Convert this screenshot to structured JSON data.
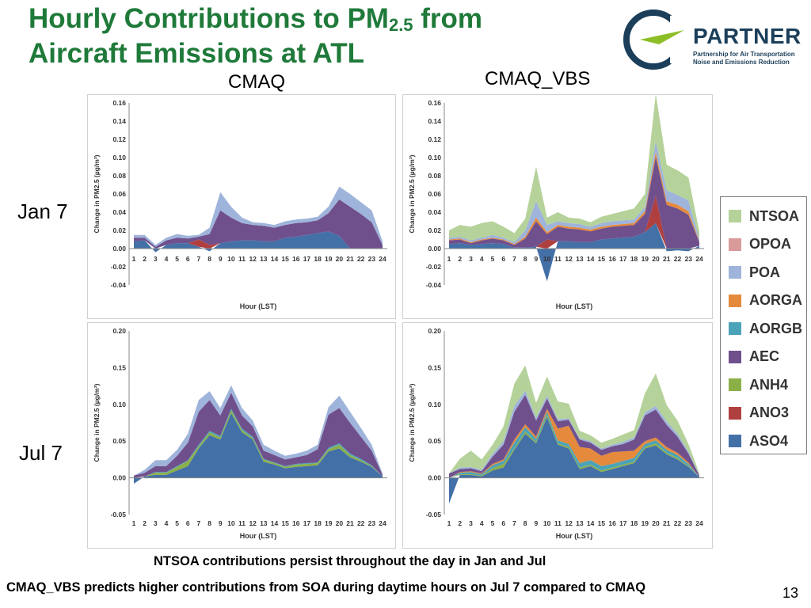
{
  "slide": {
    "title_line1_pre": "Hourly Contributions to PM",
    "title_line1_sub": "2.5",
    "title_line1_post": " from",
    "title_line2": "Aircraft Emissions at ATL",
    "col_left": "CMAQ",
    "col_right": "CMAQ_VBS",
    "row_top": "Jan 7",
    "row_bottom": "Jul 7",
    "footnote1": "NTSOA contributions persist throughout the day in Jan and Jul",
    "footnote2": "CMAQ_VBS predicts higher contributions from SOA during daytime hours on Jul 7 compared to CMAQ",
    "page_number": "13"
  },
  "logo": {
    "word": "PARTNER",
    "sub_line1": "Partnership for Air Transportation",
    "sub_line2": "Noise and Emissions Reduction",
    "ring_color": "#1b3f5a",
    "arrow_color": "#8cbf26"
  },
  "legend": [
    {
      "name": "NTSOA",
      "color": "#b5d29a"
    },
    {
      "name": "OPOA",
      "color": "#d99a9a"
    },
    {
      "name": "POA",
      "color": "#9fb4da"
    },
    {
      "name": "AORGA",
      "color": "#e58a3c"
    },
    {
      "name": "AORGB",
      "color": "#4aa3b9"
    },
    {
      "name": "AEC",
      "color": "#70508c"
    },
    {
      "name": "ANH4",
      "color": "#8cb048"
    },
    {
      "name": "ANO3",
      "color": "#b04040"
    },
    {
      "name": "ASO4",
      "color": "#4470a8"
    }
  ],
  "chart_data": [
    {
      "type": "area",
      "panel": "CMAQ Jan 7",
      "xlabel": "Hour (LST)",
      "ylabel": "Change in PM2.5 (µg/m³)",
      "ylim": [
        -0.04,
        0.16
      ],
      "yticks": [
        "-0.04",
        "-0.02",
        "0.00",
        "0.02",
        "0.04",
        "0.06",
        "0.08",
        "0.10",
        "0.12",
        "0.14",
        "0.16"
      ],
      "x": [
        1,
        2,
        3,
        4,
        5,
        6,
        7,
        8,
        9,
        10,
        11,
        12,
        13,
        14,
        15,
        16,
        17,
        18,
        19,
        20,
        21,
        22,
        23,
        24
      ],
      "series": [
        {
          "name": "ASO4",
          "values": [
            0.008,
            0.009,
            -0.004,
            0.004,
            0.006,
            0.006,
            0.002,
            -0.003,
            0.006,
            0.008,
            0.009,
            0.009,
            0.008,
            0.008,
            0.012,
            0.013,
            0.015,
            0.017,
            0.019,
            0.014,
            0.0,
            0.0,
            0.0,
            0.0
          ]
        },
        {
          "name": "ANO3",
          "values": [
            0,
            0,
            0,
            0,
            0,
            0,
            0.008,
            0.004,
            0,
            0,
            0,
            0,
            0,
            0,
            0,
            0,
            0,
            0,
            0,
            0,
            0,
            0,
            0,
            0
          ]
        },
        {
          "name": "AEC",
          "values": [
            0.004,
            0.003,
            0.002,
            0.005,
            0.006,
            0.005,
            0.003,
            0.012,
            0.036,
            0.026,
            0.019,
            0.017,
            0.017,
            0.015,
            0.014,
            0.015,
            0.014,
            0.014,
            0.02,
            0.04,
            0.046,
            0.038,
            0.029,
            0.004
          ]
        },
        {
          "name": "POA",
          "values": [
            0.003,
            0.003,
            0.002,
            0.003,
            0.004,
            0.003,
            0.002,
            0.007,
            0.02,
            0.012,
            0.006,
            0.003,
            0.003,
            0.003,
            0.004,
            0.004,
            0.004,
            0.004,
            0.007,
            0.014,
            0.014,
            0.013,
            0.013,
            0.004
          ]
        }
      ]
    },
    {
      "type": "area",
      "panel": "CMAQ_VBS Jan 7",
      "xlabel": "Hour (LST)",
      "ylabel": "Change in PM2.5 (µg/m³)",
      "ylim": [
        -0.04,
        0.16
      ],
      "yticks": [
        "-0.04",
        "-0.02",
        "0.00",
        "0.02",
        "0.04",
        "0.06",
        "0.08",
        "0.10",
        "0.12",
        "0.14",
        "0.16"
      ],
      "x": [
        1,
        2,
        3,
        4,
        5,
        6,
        7,
        8,
        9,
        10,
        11,
        12,
        13,
        14,
        15,
        16,
        17,
        18,
        19,
        20,
        21,
        22,
        23,
        24
      ],
      "series": [
        {
          "name": "ASO4",
          "values": [
            0.005,
            0.006,
            0.004,
            0.005,
            0.006,
            0.005,
            0.001,
            0.001,
            0.002,
            -0.036,
            0.008,
            0.008,
            0.007,
            0.007,
            0.01,
            0.011,
            0.012,
            0.013,
            0.018,
            0.028,
            -0.003,
            -0.002,
            -0.003,
            0.003
          ]
        },
        {
          "name": "ANO3",
          "values": [
            0,
            0,
            0,
            0,
            0,
            0,
            0,
            0,
            0,
            0.01,
            0,
            0,
            0,
            0,
            0,
            0,
            0,
            0,
            0,
            0.03,
            0,
            0,
            0,
            0
          ]
        },
        {
          "name": "AEC",
          "values": [
            0.004,
            0.004,
            0.002,
            0.004,
            0.005,
            0.004,
            0.003,
            0.01,
            0.028,
            0.006,
            0.016,
            0.014,
            0.014,
            0.012,
            0.012,
            0.013,
            0.013,
            0.013,
            0.02,
            0.043,
            0.048,
            0.044,
            0.037,
            0.004
          ]
        },
        {
          "name": "AORGA",
          "values": [
            0.001,
            0.001,
            0.001,
            0.001,
            0.001,
            0.001,
            0.001,
            0.002,
            0.004,
            0.002,
            0.002,
            0.002,
            0.002,
            0.002,
            0.002,
            0.002,
            0.002,
            0.002,
            0.003,
            0.005,
            0.004,
            0.004,
            0.004,
            0.001
          ]
        },
        {
          "name": "POA",
          "values": [
            0.002,
            0.002,
            0.002,
            0.002,
            0.003,
            0.002,
            0.002,
            0.007,
            0.018,
            0.008,
            0.004,
            0.004,
            0.004,
            0.003,
            0.004,
            0.004,
            0.004,
            0.004,
            0.005,
            0.012,
            0.012,
            0.011,
            0.012,
            0.003
          ]
        },
        {
          "name": "NTSOA",
          "values": [
            0.008,
            0.013,
            0.015,
            0.016,
            0.015,
            0.012,
            0.01,
            0.013,
            0.038,
            0.008,
            0.01,
            0.006,
            0.006,
            0.005,
            0.007,
            0.008,
            0.01,
            0.012,
            0.014,
            0.052,
            0.028,
            0.027,
            0.025,
            0.008
          ]
        }
      ]
    },
    {
      "type": "area",
      "panel": "CMAQ Jul 7",
      "xlabel": "Hour (LST)",
      "ylabel": "Change in PM2.5 (µg/m³)",
      "ylim": [
        -0.05,
        0.2
      ],
      "yticks": [
        "-0.05",
        "0.00",
        "0.05",
        "0.10",
        "0.15",
        "0.20"
      ],
      "x": [
        1,
        2,
        3,
        4,
        5,
        6,
        7,
        8,
        9,
        10,
        11,
        12,
        13,
        14,
        15,
        16,
        17,
        18,
        19,
        20,
        21,
        22,
        23,
        24
      ],
      "series": [
        {
          "name": "ASO4",
          "values": [
            -0.008,
            0.002,
            0.004,
            0.004,
            0.01,
            0.016,
            0.04,
            0.058,
            0.052,
            0.088,
            0.062,
            0.052,
            0.022,
            0.018,
            0.013,
            0.015,
            0.016,
            0.017,
            0.036,
            0.04,
            0.028,
            0.022,
            0.015,
            0.002
          ]
        },
        {
          "name": "ANH4",
          "values": [
            0.0,
            0.0,
            0.003,
            0.003,
            0.005,
            0.007,
            0.003,
            0.004,
            0.003,
            0.004,
            0.003,
            0.002,
            0.003,
            0.002,
            0.002,
            0.003,
            0.003,
            0.003,
            0.003,
            0.005,
            0.003,
            0.002,
            0.001,
            0.0
          ]
        },
        {
          "name": "AORGB",
          "values": [
            0.0,
            0.0,
            0.001,
            0.001,
            0.001,
            0.001,
            0.002,
            0.002,
            0.002,
            0.002,
            0.002,
            0.002,
            0.001,
            0.001,
            0.001,
            0.001,
            0.001,
            0.001,
            0.002,
            0.002,
            0.002,
            0.002,
            0.001,
            0.0
          ]
        },
        {
          "name": "AEC",
          "values": [
            0.003,
            0.005,
            0.008,
            0.008,
            0.014,
            0.024,
            0.045,
            0.042,
            0.028,
            0.022,
            0.018,
            0.014,
            0.011,
            0.01,
            0.009,
            0.009,
            0.011,
            0.018,
            0.045,
            0.048,
            0.042,
            0.03,
            0.02,
            0.002
          ]
        },
        {
          "name": "POA",
          "values": [
            0.0,
            0.004,
            0.008,
            0.008,
            0.008,
            0.012,
            0.016,
            0.012,
            0.01,
            0.01,
            0.01,
            0.008,
            0.008,
            0.006,
            0.005,
            0.005,
            0.006,
            0.006,
            0.01,
            0.017,
            0.015,
            0.012,
            0.008,
            0.002
          ]
        }
      ]
    },
    {
      "type": "area",
      "panel": "CMAQ_VBS Jul 7",
      "xlabel": "Hour (LST)",
      "ylabel": "Change in PM2.5 (µg/m³)",
      "ylim": [
        -0.05,
        0.2
      ],
      "yticks": [
        "-0.05",
        "0.00",
        "0.05",
        "0.10",
        "0.15",
        "0.20"
      ],
      "x": [
        1,
        2,
        3,
        4,
        5,
        6,
        7,
        8,
        9,
        10,
        11,
        12,
        13,
        14,
        15,
        16,
        17,
        18,
        19,
        20,
        21,
        22,
        23,
        24
      ],
      "series": [
        {
          "name": "ASO4",
          "values": [
            -0.035,
            0.004,
            0.004,
            0.002,
            0.01,
            0.014,
            0.038,
            0.06,
            0.047,
            0.083,
            0.045,
            0.04,
            0.012,
            0.016,
            0.008,
            0.012,
            0.016,
            0.02,
            0.04,
            0.044,
            0.032,
            0.025,
            0.015,
            0.001
          ]
        },
        {
          "name": "ANH4",
          "values": [
            0.0,
            0.001,
            0.001,
            0.001,
            0.003,
            0.005,
            0.002,
            0.003,
            0.002,
            0.003,
            0.002,
            0.002,
            0.002,
            0.002,
            0.002,
            0.002,
            0.002,
            0.002,
            0.002,
            0.003,
            0.002,
            0.002,
            0.001,
            0.0
          ]
        },
        {
          "name": "AORGB",
          "values": [
            0.0,
            0.002,
            0.003,
            0.002,
            0.004,
            0.004,
            0.008,
            0.006,
            0.004,
            0.004,
            0.004,
            0.004,
            0.006,
            0.006,
            0.006,
            0.005,
            0.005,
            0.005,
            0.004,
            0.004,
            0.004,
            0.004,
            0.003,
            0.0
          ]
        },
        {
          "name": "AORGA",
          "values": [
            0.0,
            0.001,
            0.001,
            0.001,
            0.002,
            0.002,
            0.004,
            0.004,
            0.003,
            0.004,
            0.016,
            0.025,
            0.022,
            0.016,
            0.014,
            0.016,
            0.013,
            0.01,
            0.004,
            0.004,
            0.004,
            0.003,
            0.002,
            0.0
          ]
        },
        {
          "name": "AEC",
          "values": [
            0.006,
            0.004,
            0.004,
            0.003,
            0.01,
            0.02,
            0.038,
            0.04,
            0.022,
            0.014,
            0.01,
            0.008,
            0.01,
            0.008,
            0.008,
            0.008,
            0.01,
            0.015,
            0.035,
            0.038,
            0.03,
            0.022,
            0.012,
            0.002
          ]
        },
        {
          "name": "POA",
          "values": [
            0.0,
            0.002,
            0.002,
            0.002,
            0.004,
            0.005,
            0.008,
            0.006,
            0.004,
            0.004,
            0.003,
            0.002,
            0.002,
            0.002,
            0.002,
            0.002,
            0.003,
            0.003,
            0.004,
            0.005,
            0.005,
            0.004,
            0.003,
            0.001
          ]
        },
        {
          "name": "NTSOA",
          "values": [
            0.0,
            0.012,
            0.022,
            0.014,
            0.012,
            0.02,
            0.03,
            0.034,
            0.02,
            0.026,
            0.024,
            0.02,
            0.01,
            0.008,
            0.008,
            0.008,
            0.01,
            0.01,
            0.026,
            0.044,
            0.022,
            0.018,
            0.01,
            0.002
          ]
        }
      ]
    }
  ]
}
